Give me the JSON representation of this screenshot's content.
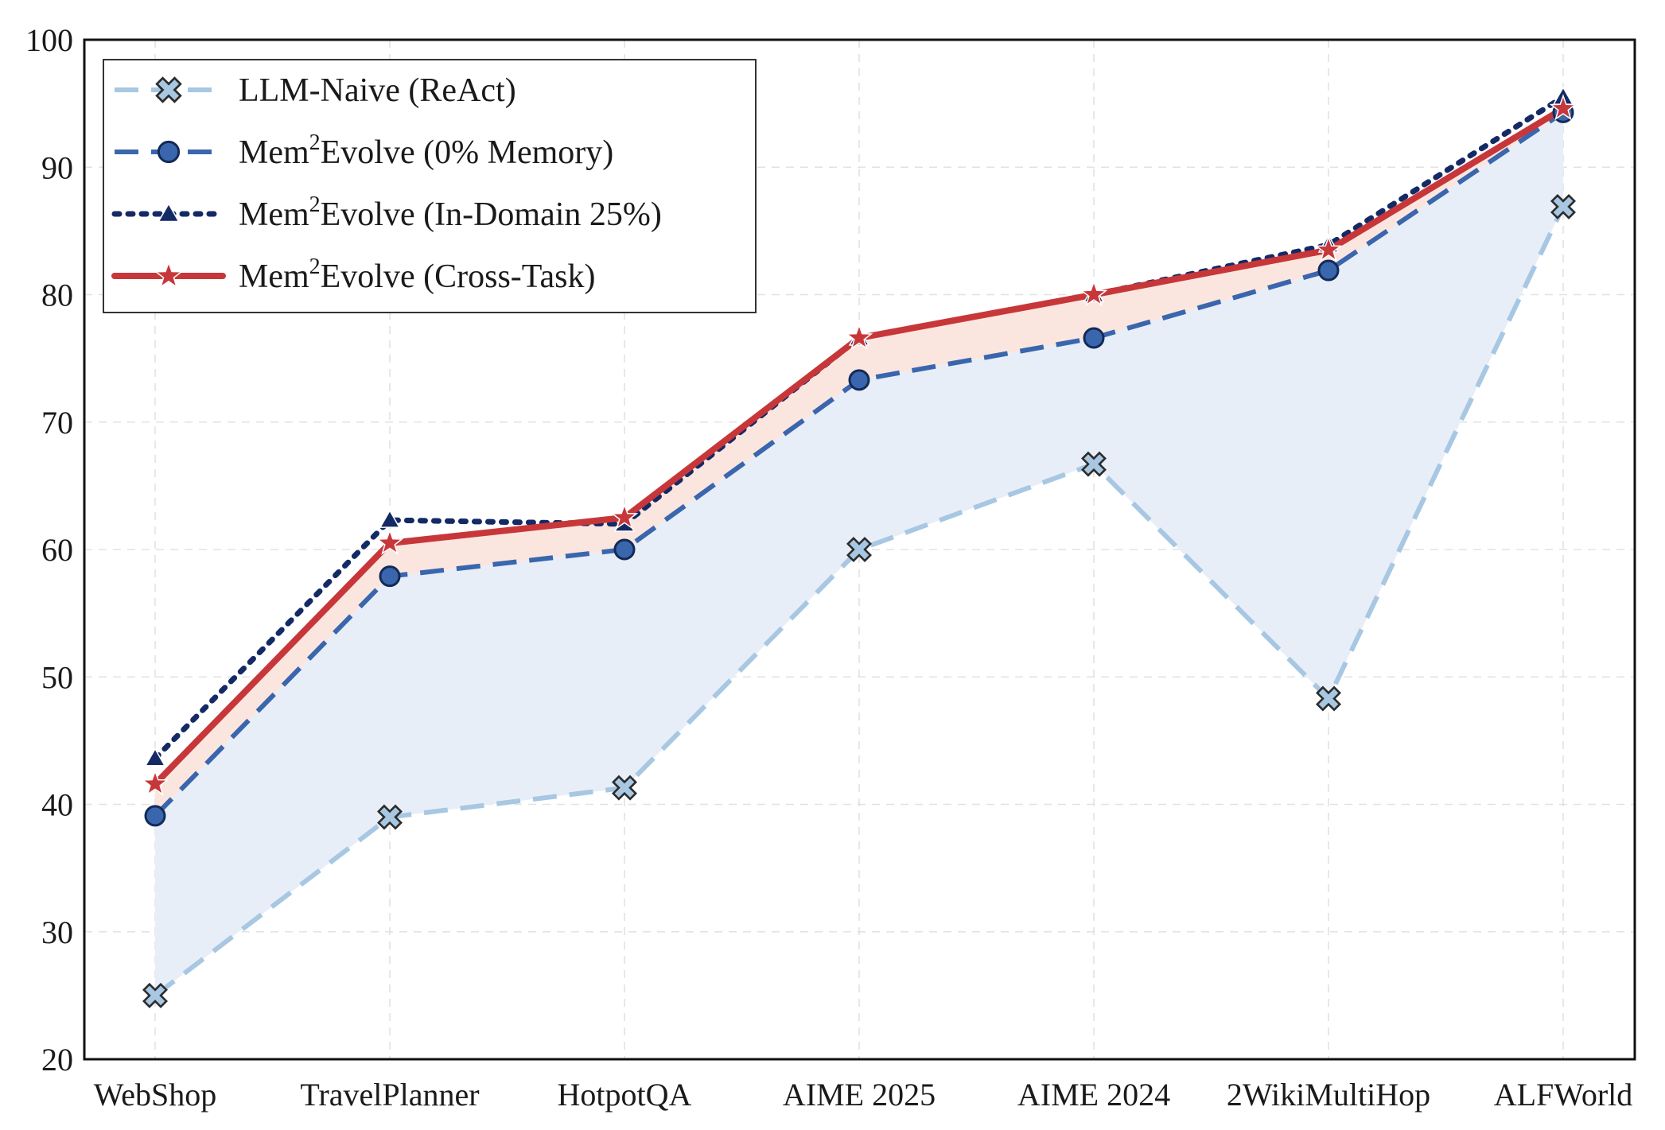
{
  "chart_data": {
    "type": "line",
    "categories": [
      "WebShop",
      "TravelPlanner",
      "HotpotQA",
      "AIME 2025",
      "AIME 2024",
      "2WikiMultiHop",
      "ALFWorld"
    ],
    "ylim": [
      20,
      100
    ],
    "yticks": [
      20,
      30,
      40,
      50,
      60,
      70,
      80,
      90,
      100
    ],
    "grid": true,
    "legend_position": "top-left",
    "series": [
      {
        "name": "LLM-Naive (ReAct)",
        "name_parts": [
          "LLM-Naive (ReAct)",
          "",
          ""
        ],
        "values": [
          25.0,
          39.0,
          41.3,
          60.0,
          66.7,
          48.3,
          86.9
        ],
        "color": "#a7c7e2",
        "marker": "x-icon",
        "style": "dashed"
      },
      {
        "name": "Mem2Evolve (0% Memory)",
        "name_parts": [
          "Mem",
          "2",
          "Evolve (0% Memory)"
        ],
        "values": [
          39.1,
          57.9,
          60.0,
          73.3,
          76.6,
          81.9,
          94.3
        ],
        "color": "#3a66ad",
        "marker": "circle-icon",
        "style": "dashed"
      },
      {
        "name": "Mem2Evolve (In-Domain 25%)",
        "name_parts": [
          "Mem",
          "2",
          "Evolve (In-Domain 25%)"
        ],
        "values": [
          43.6,
          62.3,
          62.0,
          76.6,
          80.0,
          83.9,
          95.5
        ],
        "color": "#142a66",
        "marker": "triangle-icon",
        "style": "dotted"
      },
      {
        "name": "Mem2Evolve (Cross-Task)",
        "name_parts": [
          "Mem",
          "2",
          "Evolve (Cross-Task)"
        ],
        "values": [
          41.6,
          60.5,
          62.5,
          76.6,
          80.0,
          83.5,
          94.6
        ],
        "color": "#c7373a",
        "marker": "star-icon",
        "style": "solid"
      }
    ],
    "fills": [
      {
        "between": [
          0,
          1
        ],
        "color": "#e8eef8"
      },
      {
        "between": [
          1,
          3
        ],
        "color": "#fbe6df"
      }
    ]
  }
}
